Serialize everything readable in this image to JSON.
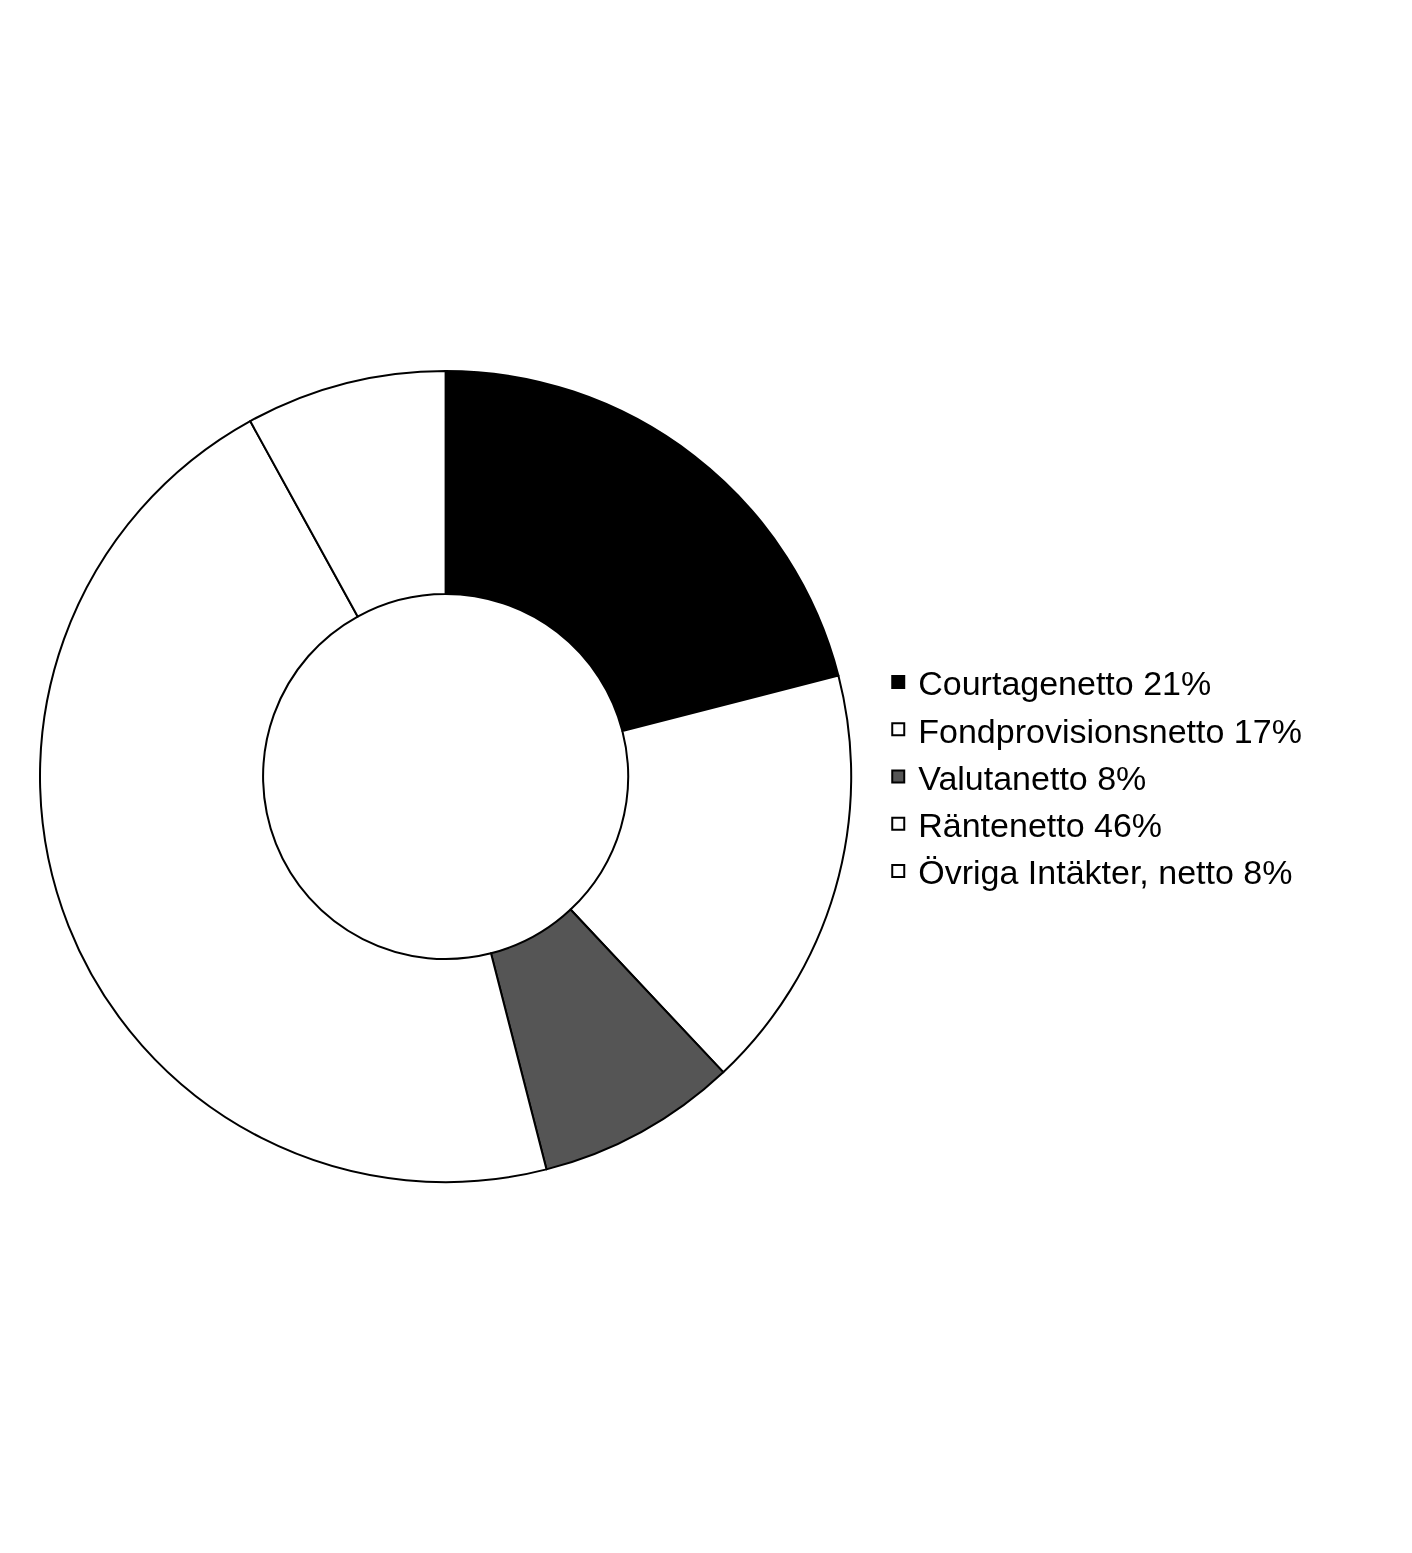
{
  "chart_data": {
    "type": "donut",
    "categories": [
      "Courtagenetto 21%",
      "Fondprovisionsnetto 17%",
      "Valutanetto 8%",
      "Räntenetto 46%",
      "Övriga Intäkter, netto 8%"
    ],
    "values": [
      21,
      17,
      8,
      46,
      8
    ],
    "colors": [
      "#000000",
      "#ffffff",
      "#555555",
      "#ffffff",
      "#ffffff"
    ],
    "legend": "right"
  }
}
